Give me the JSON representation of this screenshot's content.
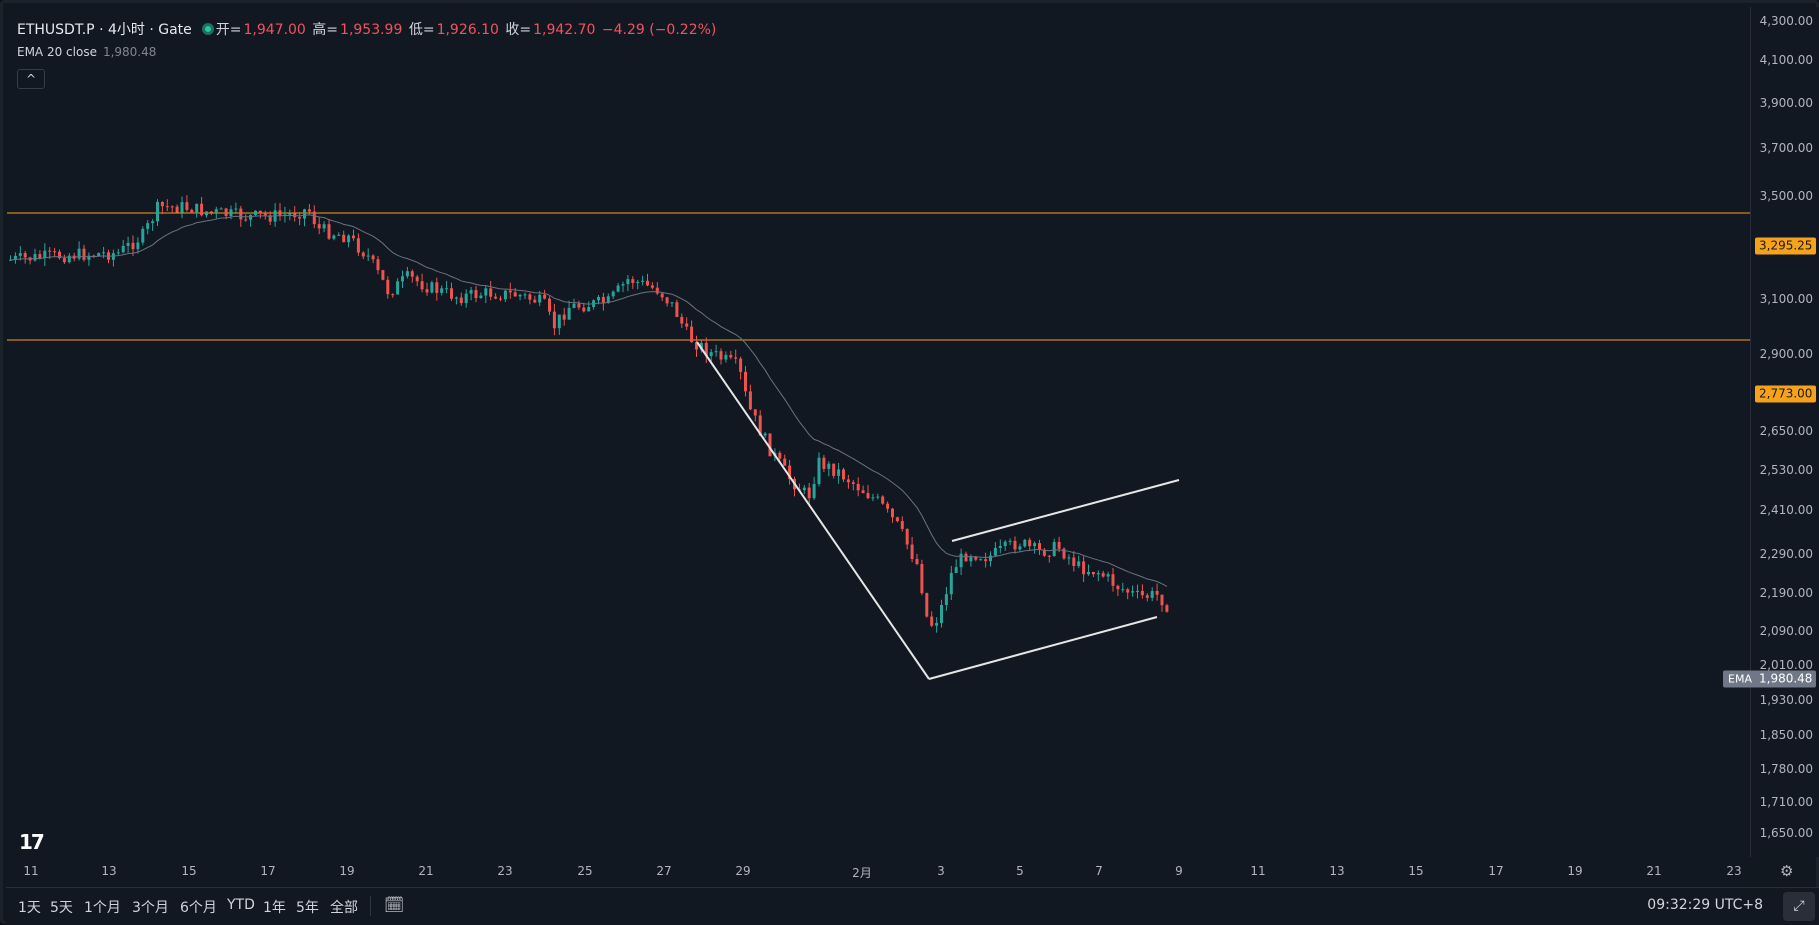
{
  "legend": {
    "symbol": "ETHUSDT.P · 4小时 · Gate",
    "open_label": "开=",
    "open": "1,947.00",
    "high_label": "高=",
    "high": "1,953.99",
    "low_label": "低=",
    "low": "1,926.10",
    "close_label": "收=",
    "close": "1,942.70",
    "change": "−4.29 (−0.22%)"
  },
  "ema": {
    "label": "EMA 20 close",
    "value": "1,980.48",
    "tag": "EMA",
    "tag_value": "1,980.48"
  },
  "collapse_icon": "^",
  "levels": [
    {
      "value": "3,295.25"
    },
    {
      "value": "2,773.00"
    }
  ],
  "y_ticks": [
    "4,300.00",
    "4,100.00",
    "3,900.00",
    "3,700.00",
    "3,500.00",
    "3,300.00",
    "3,100.00",
    "2,900.00",
    "2,770.00",
    "2,650.00",
    "2,530.00",
    "2,410.00",
    "2,290.00",
    "2,190.00",
    "2,090.00",
    "2,010.00",
    "1,930.00",
    "1,850.00",
    "1,780.00",
    "1,710.00",
    "1,650.00"
  ],
  "x_ticks": [
    "11",
    "13",
    "15",
    "17",
    "19",
    "21",
    "23",
    "25",
    "27",
    "29",
    "2月",
    "3",
    "5",
    "7",
    "9",
    "11",
    "13",
    "15",
    "17",
    "19",
    "21",
    "23"
  ],
  "ranges": [
    "1天",
    "5天",
    "1个月",
    "3个月",
    "6个月",
    "YTD",
    "1年",
    "5年",
    "全部"
  ],
  "clock": "09:32:29 UTC+8",
  "logo": "17",
  "colors": {
    "up": "#26a69a",
    "down": "#ef5350",
    "level": "#f7a21b",
    "ema": "#6b7280",
    "trendline": "#e6e6e6"
  },
  "chart_data": {
    "type": "candlestick",
    "symbol": "ETHUSDT.P",
    "interval": "4h",
    "last": {
      "open": 1947.0,
      "high": 1953.99,
      "low": 1926.1,
      "close": 1942.7
    },
    "ema20_last": 1980.48,
    "horizontal_levels": [
      3295.25,
      2773.0
    ],
    "ylim": [
      1650,
      4300
    ],
    "x_tick_labels": [
      "11",
      "13",
      "15",
      "17",
      "19",
      "21",
      "23",
      "25",
      "27",
      "29",
      "2月",
      "3",
      "5",
      "7",
      "9",
      "11",
      "13",
      "15",
      "17",
      "19",
      "21",
      "23"
    ]
  }
}
